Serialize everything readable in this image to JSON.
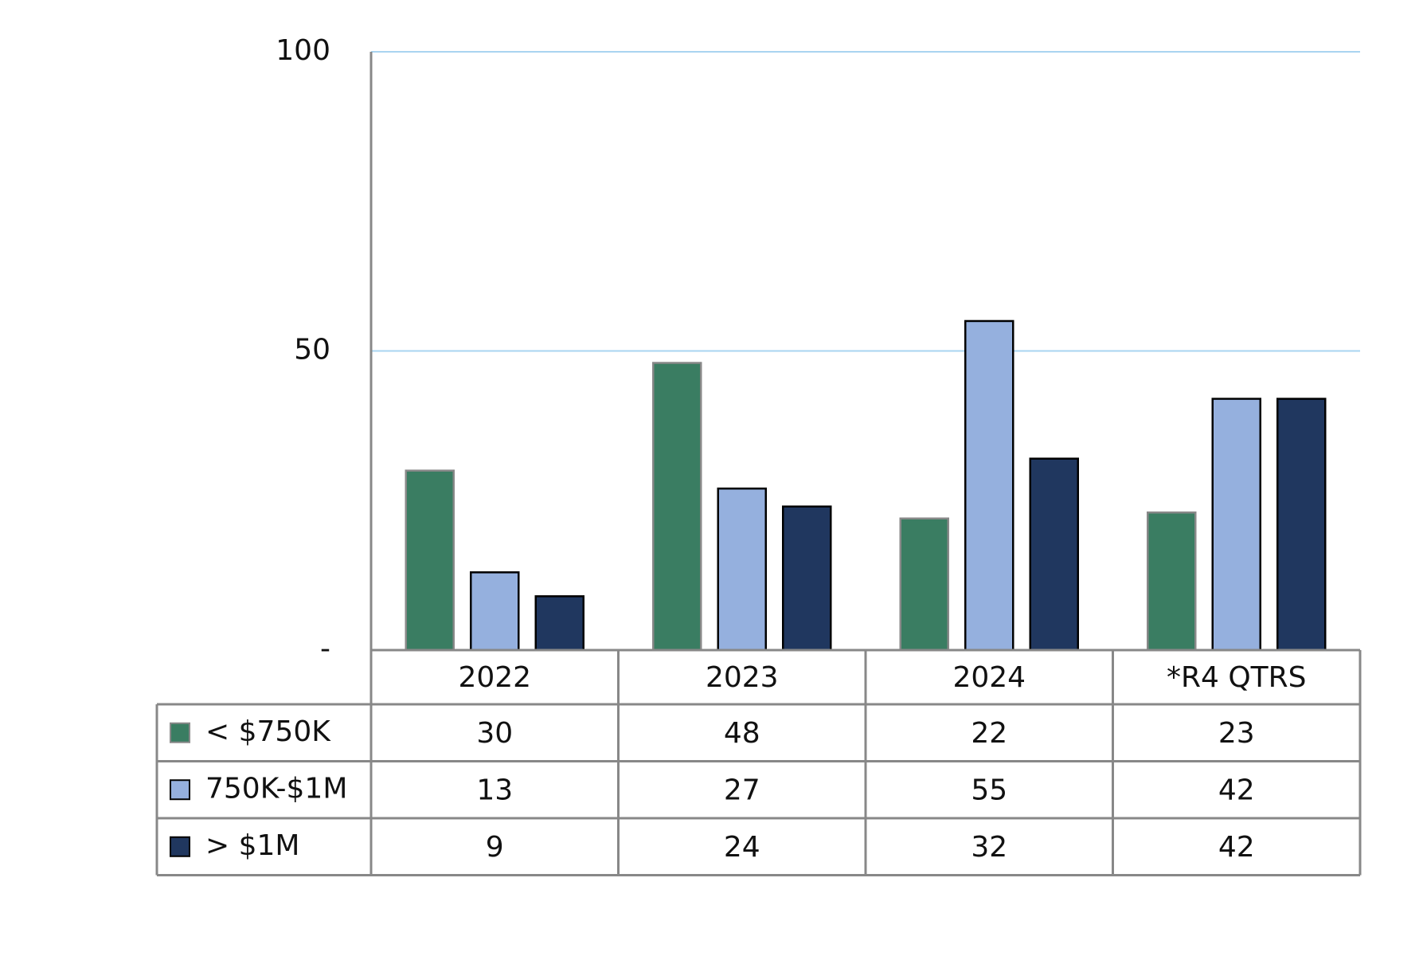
{
  "chart_data": {
    "type": "bar",
    "categories": [
      "2022",
      "2023",
      "2024",
      "*R4 QTRS"
    ],
    "series": [
      {
        "name": "< $750K",
        "color": "#3a7d62",
        "values": [
          30,
          48,
          22,
          23
        ]
      },
      {
        "name": "750K-$1M",
        "color": "#95b0de",
        "values": [
          13,
          27,
          55,
          42
        ]
      },
      {
        "name": "> $1M",
        "color": "#20375f",
        "values": [
          9,
          24,
          32,
          42
        ]
      }
    ],
    "ylim": [
      0,
      100
    ],
    "yticks": [
      {
        "value": 0,
        "label": "-"
      },
      50,
      100
    ],
    "grid": true,
    "grid_color": "#a9d4f0",
    "data_table": true
  }
}
